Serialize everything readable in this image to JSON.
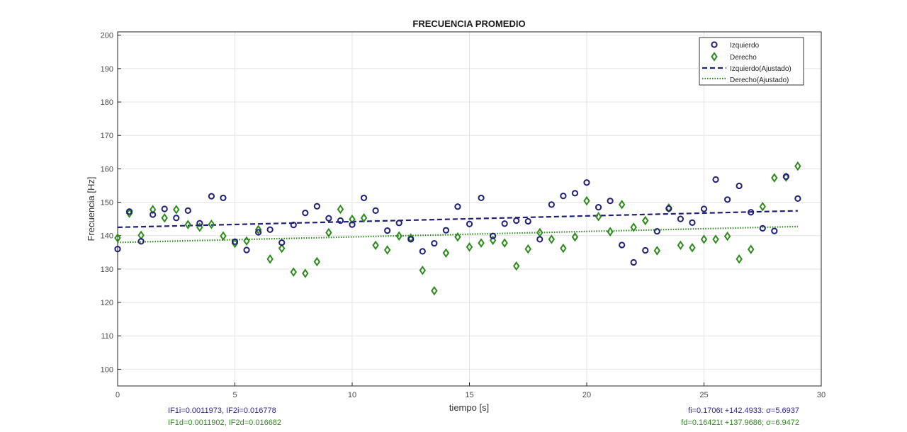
{
  "chart_data": {
    "type": "scatter",
    "title": "FRECUENCIA PROMEDIO",
    "xlabel": "tiempo [s]",
    "ylabel": "Frecuencia [Hz]",
    "xlim": [
      0,
      30
    ],
    "ylim": [
      95,
      201
    ],
    "xticks": [
      0,
      5,
      10,
      15,
      20,
      25,
      30
    ],
    "yticks": [
      100,
      110,
      120,
      130,
      140,
      150,
      160,
      170,
      180,
      190,
      200
    ],
    "grid": true,
    "legend_position": "top-right",
    "colors": {
      "izquierdo": "#1f1f7a",
      "derecho": "#2e8b1e"
    },
    "series": [
      {
        "name": "Izquierdo",
        "marker": "circle",
        "x": [
          0,
          0.5,
          1,
          1.5,
          2,
          2.5,
          3,
          3.5,
          4,
          4.5,
          5,
          5.5,
          6,
          6.5,
          7,
          7.5,
          8,
          8.5,
          9,
          9.5,
          10,
          10.5,
          11,
          11.5,
          12,
          12.5,
          13,
          13.5,
          14,
          14.5,
          15,
          15.5,
          16,
          16.5,
          17,
          17.5,
          18,
          18.5,
          19,
          19.5,
          20,
          20.5,
          21,
          21.5,
          22,
          22.5,
          23,
          23.5,
          24,
          24.5,
          25,
          25.5,
          26,
          26.5,
          27,
          27.5,
          28,
          28.5,
          29
        ],
        "y": [
          136,
          147.2,
          138.3,
          146.3,
          148,
          145.3,
          147.5,
          143.7,
          151.8,
          151.3,
          138.2,
          135.7,
          141,
          141.8,
          137.9,
          143.2,
          146.8,
          148.8,
          145.2,
          144.5,
          143.3,
          151.3,
          147.5,
          141.5,
          143.8,
          138.9,
          135.3,
          137.7,
          141.6,
          148.7,
          143.5,
          151.3,
          139.9,
          143.6,
          144.5,
          144.3,
          138.9,
          149.3,
          151.9,
          152.7,
          155.9,
          148.5,
          150.4,
          137.2,
          132,
          135.6,
          141.3,
          148.1,
          145,
          143.9,
          148,
          156.8,
          150.8,
          154.9,
          147,
          142.2,
          141.4,
          157.7,
          151.1
        ]
      },
      {
        "name": "Derecho",
        "marker": "diamond",
        "x": [
          0,
          0.5,
          1,
          1.5,
          2,
          2.5,
          3,
          3.5,
          4,
          4.5,
          5,
          5.5,
          6,
          6.5,
          7,
          7.5,
          8,
          8.5,
          9,
          9.5,
          10,
          10.5,
          11,
          11.5,
          12,
          12.5,
          13,
          13.5,
          14,
          14.5,
          15,
          15.5,
          16,
          16.5,
          17,
          17.5,
          18,
          18.5,
          19,
          19.5,
          20,
          20.5,
          21,
          21.5,
          22,
          22.5,
          23,
          23.5,
          24,
          24.5,
          25,
          25.5,
          26,
          26.5,
          27,
          27.5,
          28,
          28.5,
          29
        ],
        "y": [
          139.3,
          146.7,
          140.1,
          147.8,
          145.3,
          147.8,
          143.3,
          142.5,
          143.4,
          139.9,
          137.7,
          138.4,
          141.8,
          133,
          136.2,
          129.1,
          128.7,
          132.2,
          140.9,
          147.9,
          144.9,
          145.3,
          137.1,
          135.7,
          139.9,
          139.3,
          129.6,
          123.5,
          134.8,
          139.6,
          136.6,
          137.8,
          138.6,
          137.8,
          130.9,
          136,
          140.9,
          138.9,
          136.2,
          139.6,
          150.4,
          145.7,
          141.2,
          149.3,
          142.5,
          144.5,
          135.5,
          148.3,
          137.1,
          136.4,
          138.9,
          138.9,
          139.8,
          133,
          135.9,
          148.7,
          157.3,
          157.5,
          160.8
        ]
      },
      {
        "name": "Izquierdo(Ajustado)",
        "type": "line",
        "style": "dashed",
        "x": [
          0,
          29
        ],
        "y": [
          142.4933,
          147.4407
        ]
      },
      {
        "name": "Derecho(Ajustado)",
        "type": "line",
        "style": "dotted",
        "x": [
          0,
          29
        ],
        "y": [
          137.9686,
          142.7307
        ]
      }
    ],
    "annotations": {
      "left_line1": "IF1i=0.0011973, IF2i=0.016778",
      "left_line2": "IF1d=0.0011902, IF2d=0.016682",
      "right_line1": "fi=0.1706t +142.4933: σ=5.6937",
      "right_line2": "fd=0.16421t +137.9686; σ=6.9472"
    }
  }
}
